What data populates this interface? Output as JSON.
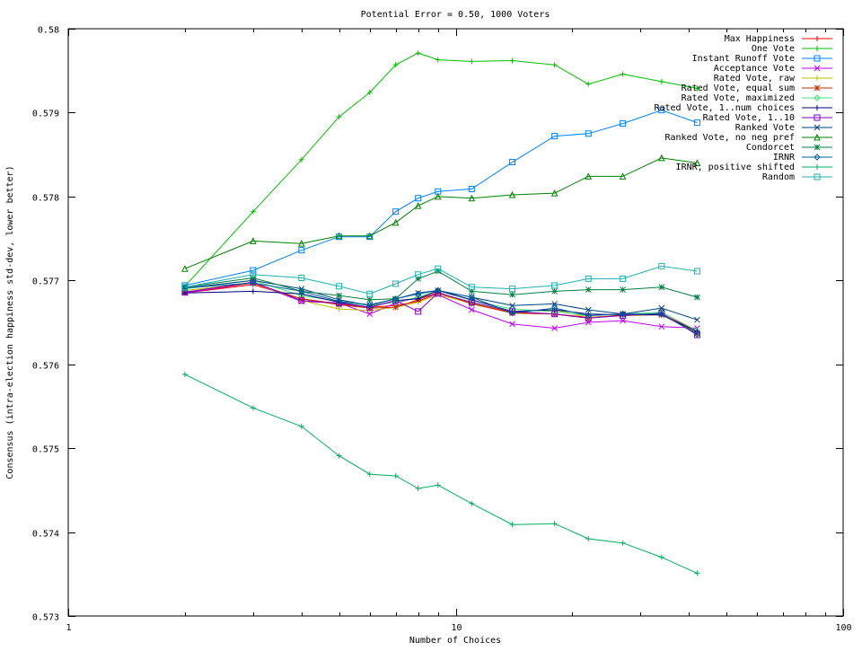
{
  "chart_data": {
    "type": "line",
    "title": "Potential Error = 0.50, 1000 Voters",
    "xlabel": "Number of Choices",
    "ylabel": "Consensus (intra-election happiness std-dev, lower better)",
    "xscale": "log",
    "xlim": [
      1,
      100
    ],
    "ylim": [
      0.573,
      0.58
    ],
    "xticks": [
      1,
      10,
      100
    ],
    "xtick_labels": [
      "1",
      "10",
      "100"
    ],
    "yticks": [
      0.573,
      0.574,
      0.575,
      0.576,
      0.577,
      0.578,
      0.579,
      0.58
    ],
    "ytick_labels": [
      "0.573",
      "0.574",
      "0.575",
      "0.576",
      "0.577",
      "0.578",
      "0.579",
      "0.58"
    ],
    "grid": false,
    "legend_position": "top-right",
    "x": [
      2,
      3,
      4,
      5,
      6,
      7,
      8,
      9,
      11,
      14,
      18,
      22,
      27,
      34,
      42
    ],
    "series": [
      {
        "name": "Max Happiness",
        "color": "#ff0000",
        "marker": "plus",
        "values": [
          0.57685,
          0.57695,
          0.57678,
          0.57672,
          0.57668,
          0.5767,
          0.57675,
          0.57685,
          0.57672,
          0.57662,
          0.5766,
          0.57656,
          0.57658,
          0.5766,
          0.5764
        ]
      },
      {
        "name": "One Vote",
        "color": "#00c000",
        "marker": "plus",
        "values": [
          0.57693,
          0.57782,
          0.57844,
          0.57895,
          0.57924,
          0.57957,
          0.57971,
          0.57963,
          0.57961,
          0.57962,
          0.57957,
          0.57934,
          0.57946,
          0.57937,
          0.57929
        ]
      },
      {
        "name": "Instant Runoff Vote",
        "color": "#0080ff",
        "marker": "square",
        "values": [
          0.57694,
          0.57712,
          0.57736,
          0.57752,
          0.57752,
          0.57782,
          0.57798,
          0.57806,
          0.57809,
          0.57841,
          0.57872,
          0.57875,
          0.57887,
          0.57903,
          0.57888
        ]
      },
      {
        "name": "Acceptance Vote",
        "color": "#c000ff",
        "marker": "x",
        "values": [
          0.57685,
          0.57697,
          0.57675,
          0.57673,
          0.5766,
          0.57673,
          0.5768,
          0.57683,
          0.57665,
          0.57648,
          0.57643,
          0.5765,
          0.57652,
          0.57645,
          0.57643
        ]
      },
      {
        "name": "Rated Vote, raw",
        "color": "#c0c000",
        "marker": "plus",
        "values": [
          0.57688,
          0.57697,
          0.57676,
          0.57666,
          0.57664,
          0.57668,
          0.57674,
          0.57683,
          0.57673,
          0.57663,
          0.57665,
          0.57656,
          0.57658,
          0.57659,
          0.57639
        ]
      },
      {
        "name": "Rated Vote, equal sum",
        "color": "#c03000",
        "marker": "star",
        "values": [
          0.57686,
          0.57697,
          0.57678,
          0.57671,
          0.57667,
          0.57668,
          0.57677,
          0.57686,
          0.57672,
          0.57661,
          0.5766,
          0.57655,
          0.57659,
          0.57659,
          0.57637
        ]
      },
      {
        "name": "Rated Vote, maximized",
        "color": "#40e080",
        "marker": "diamond",
        "values": [
          0.5769,
          0.577,
          0.57682,
          0.57675,
          0.5767,
          0.57674,
          0.5768,
          0.57688,
          0.57676,
          0.57666,
          0.57663,
          0.57658,
          0.5766,
          0.57662,
          0.5764
        ]
      },
      {
        "name": "Rated Vote, 1..num choices",
        "color": "#000080",
        "marker": "plus",
        "values": [
          0.57685,
          0.57687,
          0.57684,
          0.57674,
          0.57668,
          0.57676,
          0.57678,
          0.57688,
          0.57677,
          0.57663,
          0.57665,
          0.5766,
          0.57659,
          0.57659,
          0.57639
        ]
      },
      {
        "name": "Rated Vote, 1..10",
        "color": "#8000c0",
        "marker": "square",
        "values": [
          0.57686,
          0.57698,
          0.57676,
          0.57673,
          0.57668,
          0.57676,
          0.57663,
          0.57685,
          0.57674,
          0.57663,
          0.5766,
          0.57655,
          0.57658,
          0.57661,
          0.57635
        ]
      },
      {
        "name": "Ranked Vote",
        "color": "#004080",
        "marker": "x",
        "values": [
          0.57691,
          0.577,
          0.5769,
          0.57677,
          0.5767,
          0.57678,
          0.57685,
          0.57688,
          0.5768,
          0.5767,
          0.57672,
          0.57665,
          0.5766,
          0.57667,
          0.57653
        ]
      },
      {
        "name": "Ranked Vote, no neg pref",
        "color": "#008000",
        "marker": "triangle",
        "values": [
          0.57714,
          0.57747,
          0.57744,
          0.57753,
          0.57753,
          0.57769,
          0.57789,
          0.578,
          0.57798,
          0.57802,
          0.57804,
          0.57824,
          0.57824,
          0.57846,
          0.5784
        ]
      },
      {
        "name": "Condorcet",
        "color": "#008040",
        "marker": "star",
        "values": [
          0.57692,
          0.57703,
          0.57687,
          0.57682,
          0.57677,
          0.57678,
          0.57702,
          0.57711,
          0.57687,
          0.57683,
          0.57687,
          0.57689,
          0.57689,
          0.57692,
          0.5768
        ]
      },
      {
        "name": "IRNR",
        "color": "#0060a0",
        "marker": "diamond",
        "values": [
          0.57691,
          0.57697,
          0.57687,
          0.57675,
          0.57671,
          0.57678,
          0.57684,
          0.57688,
          0.5768,
          0.57661,
          0.57667,
          0.57658,
          0.5766,
          0.5766,
          0.57636
        ]
      },
      {
        "name": "IRNR, positive shifted",
        "color": "#00b060",
        "marker": "plus",
        "values": [
          0.57588,
          0.57548,
          0.57526,
          0.57491,
          0.57469,
          0.57467,
          0.57452,
          0.57456,
          0.57434,
          0.57409,
          0.5741,
          0.57392,
          0.57387,
          0.5737,
          0.57351
        ]
      },
      {
        "name": "Random",
        "color": "#20b0b0",
        "marker": "square",
        "values": [
          0.57692,
          0.57707,
          0.57703,
          0.57693,
          0.57684,
          0.57696,
          0.57707,
          0.57714,
          0.57692,
          0.5769,
          0.57694,
          0.57702,
          0.57702,
          0.57717,
          0.57711
        ]
      }
    ]
  }
}
